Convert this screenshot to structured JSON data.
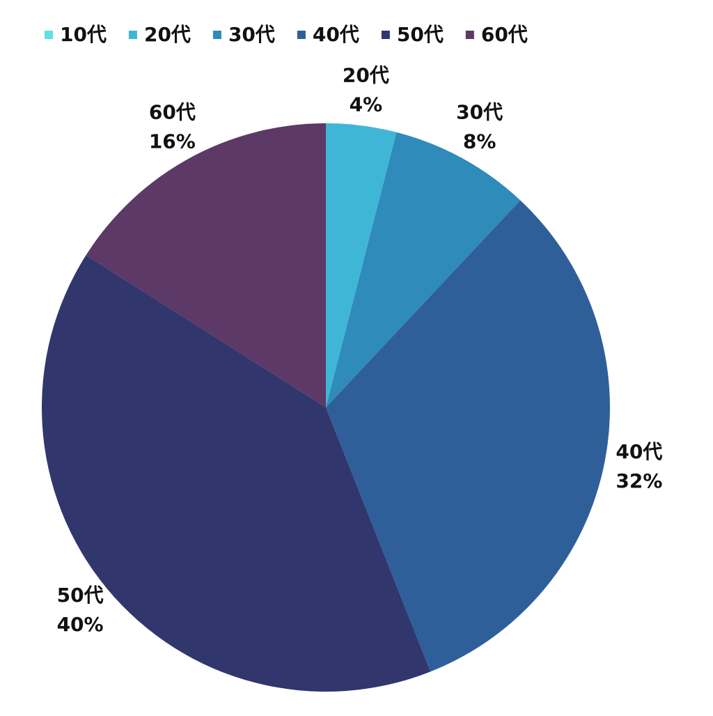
{
  "chart_data": {
    "type": "pie",
    "categories": [
      "10代",
      "20代",
      "30代",
      "40代",
      "50代",
      "60代"
    ],
    "values": [
      0,
      4,
      8,
      32,
      40,
      16
    ],
    "value_labels": [
      null,
      "4%",
      "8%",
      "32%",
      "40%",
      "16%"
    ],
    "colors": [
      "#5ce1e6",
      "#40b6d6",
      "#2e8bba",
      "#2f5f98",
      "#31366d",
      "#5c3966"
    ],
    "legend": "top"
  }
}
